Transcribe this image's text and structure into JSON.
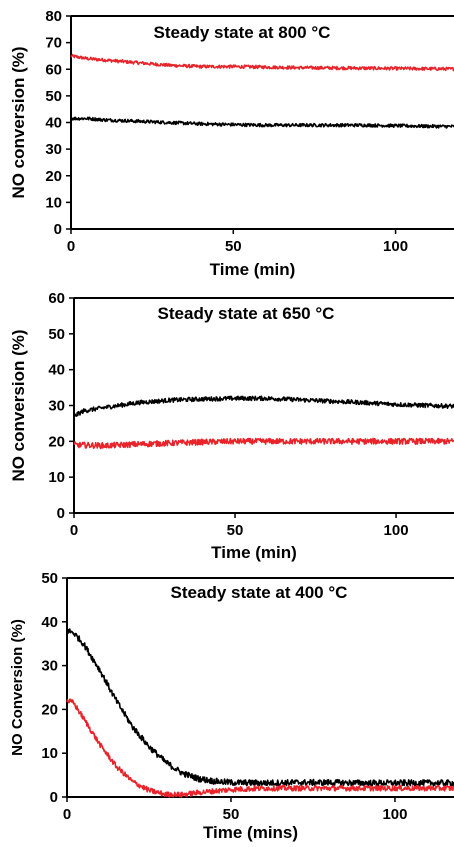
{
  "chart_data": [
    {
      "type": "line",
      "title": "Steady state at 800 °C",
      "xlabel": "Time (min)",
      "ylabel": "NO conversion (%)",
      "xlim": [
        0,
        118
      ],
      "ylim": [
        0,
        80
      ],
      "xticks": [
        0,
        50,
        100
      ],
      "yticks": [
        0,
        10,
        20,
        30,
        40,
        50,
        60,
        70,
        80
      ],
      "series": [
        {
          "color": "#e8232a",
          "x": [
            0,
            5,
            10,
            20,
            30,
            40,
            50,
            60,
            70,
            80,
            90,
            100,
            110,
            118
          ],
          "y": [
            65,
            64,
            63.5,
            62.5,
            61.5,
            61,
            61,
            60.8,
            60.6,
            60.5,
            60.4,
            60.3,
            60.2,
            60.1
          ],
          "noise": 0.6
        },
        {
          "color": "#000000",
          "x": [
            0,
            5,
            10,
            20,
            30,
            40,
            50,
            60,
            70,
            80,
            90,
            100,
            110,
            118
          ],
          "y": [
            41.5,
            41.5,
            41,
            40.5,
            40,
            39.5,
            39.2,
            39,
            39,
            39,
            39,
            38.8,
            38.6,
            38.5
          ],
          "noise": 0.6
        }
      ]
    },
    {
      "type": "line",
      "title": "Steady state at 650 °C",
      "xlabel": "Time (min)",
      "ylabel": "NO conversion (%)",
      "xlim": [
        0,
        118
      ],
      "ylim": [
        0,
        60
      ],
      "xticks": [
        0,
        50,
        100
      ],
      "yticks": [
        0,
        10,
        20,
        30,
        40,
        50,
        60
      ],
      "series": [
        {
          "color": "#000000",
          "x": [
            0,
            3,
            10,
            20,
            30,
            40,
            50,
            60,
            70,
            80,
            90,
            100,
            110,
            118
          ],
          "y": [
            27,
            28.5,
            29.5,
            30.8,
            31.5,
            31.8,
            32,
            32,
            31.6,
            31.2,
            30.8,
            30.3,
            30,
            29.8
          ],
          "noise": 0.6
        },
        {
          "color": "#e8232a",
          "x": [
            0,
            10,
            20,
            30,
            40,
            50,
            60,
            70,
            80,
            90,
            100,
            110,
            118
          ],
          "y": [
            19,
            18.8,
            19.2,
            19.5,
            19.8,
            20,
            20,
            20,
            20,
            20,
            20,
            20,
            20
          ],
          "noise": 0.8
        }
      ]
    },
    {
      "type": "line",
      "title": "Steady state at 400 °C",
      "xlabel": "Time (mins)",
      "ylabel": "NO Conversion (%)",
      "xlim": [
        0,
        118
      ],
      "ylim": [
        0,
        50
      ],
      "xticks": [
        0,
        50,
        100
      ],
      "yticks": [
        0,
        10,
        20,
        30,
        40,
        50
      ],
      "series": [
        {
          "color": "#000000",
          "x": [
            0,
            2,
            5,
            10,
            15,
            20,
            25,
            30,
            35,
            40,
            45,
            50,
            60,
            70,
            80,
            90,
            100,
            110,
            118
          ],
          "y": [
            38,
            37.5,
            35,
            29,
            22,
            16,
            11.5,
            8,
            5.5,
            4.2,
            3.6,
            3.3,
            3.2,
            3.3,
            3.3,
            3.2,
            3.2,
            3.2,
            3.2
          ],
          "noise": 0.7
        },
        {
          "color": "#e8232a",
          "x": [
            0,
            2,
            5,
            10,
            15,
            20,
            25,
            30,
            35,
            40,
            50,
            60,
            70,
            80,
            90,
            100,
            110,
            118
          ],
          "y": [
            22,
            21.5,
            18,
            12,
            7,
            3.5,
            1.5,
            0.6,
            0.5,
            1,
            1.7,
            2,
            2,
            2,
            2,
            2,
            2,
            2
          ],
          "noise": 0.6
        }
      ]
    }
  ]
}
